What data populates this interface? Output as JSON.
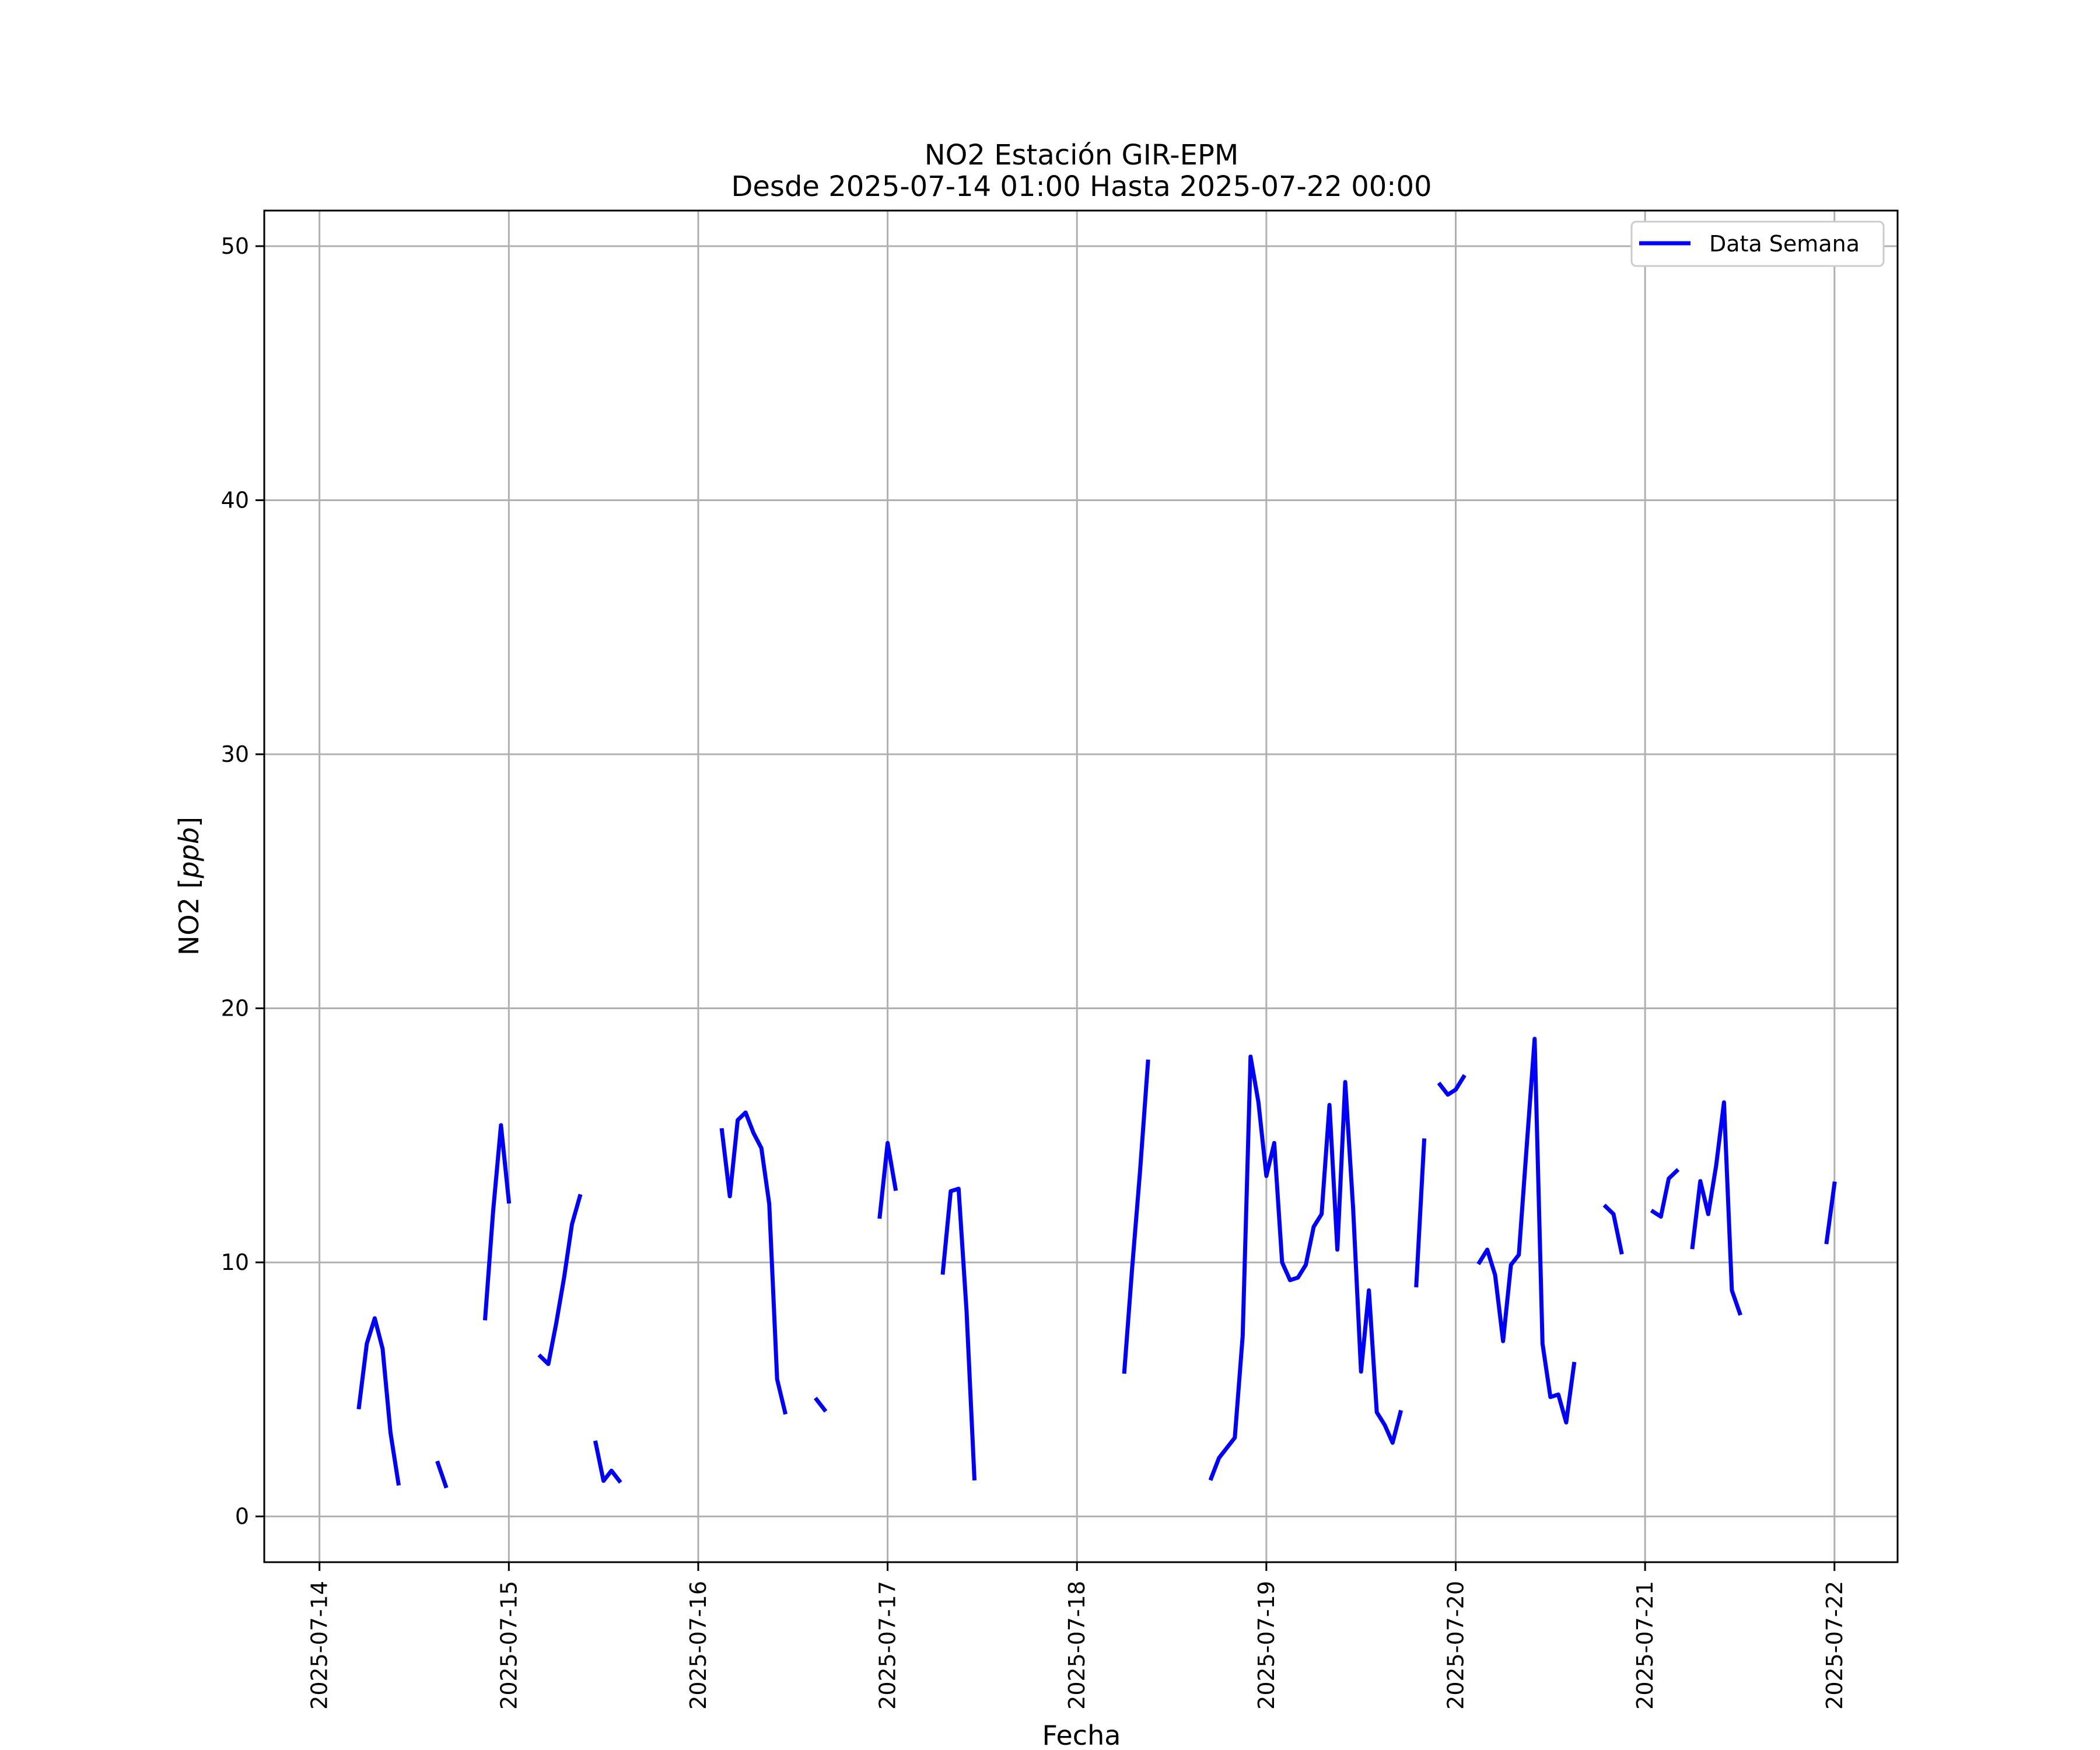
{
  "chart_data": {
    "type": "line",
    "title": "NO2 Estación GIR-EPM",
    "subtitle": "Desde 2025-07-14 01:00 Hasta 2025-07-22 00:00",
    "xlabel": "Fecha",
    "ylabel_main": "NO2 [",
    "ylabel_unit": "ppb",
    "ylabel_end": "]",
    "ylim": [
      -1.8,
      51.4
    ],
    "xlim": [
      "2025-07-13 17:00",
      "2025-07-22 08:00"
    ],
    "yticks": [
      "0",
      "10",
      "20",
      "30",
      "40",
      "50"
    ],
    "xticks": [
      "2025-07-14",
      "2025-07-15",
      "2025-07-16",
      "2025-07-17",
      "2025-07-18",
      "2025-07-19",
      "2025-07-20",
      "2025-07-21",
      "2025-07-22"
    ],
    "grid": true,
    "legend_position": "top-right",
    "series": [
      {
        "name": "Data Semana",
        "color": "#0000ff",
        "segments": [
          [
            [
              "2025-07-14 05:00",
              4.3
            ],
            [
              "2025-07-14 06:00",
              6.8
            ],
            [
              "2025-07-14 07:00",
              7.8
            ],
            [
              "2025-07-14 08:00",
              6.6
            ],
            [
              "2025-07-14 09:00",
              3.3
            ],
            [
              "2025-07-14 10:00",
              1.3
            ]
          ],
          [
            [
              "2025-07-14 15:00",
              2.1
            ],
            [
              "2025-07-14 16:00",
              1.2
            ]
          ],
          [
            [
              "2025-07-14 21:00",
              7.8
            ],
            [
              "2025-07-14 22:00",
              12.0
            ],
            [
              "2025-07-14 23:00",
              15.4
            ],
            [
              "2025-07-15 00:00",
              12.4
            ]
          ],
          [
            [
              "2025-07-15 04:00",
              6.3
            ],
            [
              "2025-07-15 05:00",
              6.0
            ],
            [
              "2025-07-15 06:00",
              7.6
            ],
            [
              "2025-07-15 07:00",
              9.4
            ],
            [
              "2025-07-15 08:00",
              11.5
            ],
            [
              "2025-07-15 09:00",
              12.6
            ]
          ],
          [
            [
              "2025-07-15 11:00",
              2.9
            ],
            [
              "2025-07-15 12:00",
              1.4
            ],
            [
              "2025-07-15 13:00",
              1.8
            ],
            [
              "2025-07-15 14:00",
              1.4
            ]
          ],
          [
            [
              "2025-07-16 03:00",
              15.2
            ],
            [
              "2025-07-16 04:00",
              12.6
            ],
            [
              "2025-07-16 05:00",
              15.6
            ],
            [
              "2025-07-16 06:00",
              15.9
            ],
            [
              "2025-07-16 07:00",
              15.1
            ],
            [
              "2025-07-16 08:00",
              14.5
            ],
            [
              "2025-07-16 09:00",
              12.3
            ],
            [
              "2025-07-16 10:00",
              5.4
            ],
            [
              "2025-07-16 11:00",
              4.1
            ]
          ],
          [
            [
              "2025-07-16 15:00",
              4.6
            ],
            [
              "2025-07-16 16:00",
              4.2
            ]
          ],
          [
            [
              "2025-07-16 23:00",
              11.8
            ],
            [
              "2025-07-17 00:00",
              14.7
            ],
            [
              "2025-07-17 01:00",
              12.9
            ]
          ],
          [
            [
              "2025-07-17 07:00",
              9.6
            ],
            [
              "2025-07-17 08:00",
              12.8
            ],
            [
              "2025-07-17 09:00",
              12.9
            ],
            [
              "2025-07-17 10:00",
              8.1
            ],
            [
              "2025-07-17 11:00",
              1.5
            ]
          ],
          [
            [
              "2025-07-18 06:00",
              5.7
            ],
            [
              "2025-07-18 07:00",
              9.8
            ],
            [
              "2025-07-18 08:00",
              13.6
            ],
            [
              "2025-07-18 09:00",
              17.9
            ]
          ],
          [
            [
              "2025-07-18 17:00",
              1.5
            ],
            [
              "2025-07-18 18:00",
              2.3
            ],
            [
              "2025-07-18 19:00",
              2.7
            ],
            [
              "2025-07-18 20:00",
              3.1
            ],
            [
              "2025-07-18 21:00",
              7.1
            ],
            [
              "2025-07-18 22:00",
              18.1
            ],
            [
              "2025-07-18 23:00",
              16.3
            ],
            [
              "2025-07-19 00:00",
              13.4
            ],
            [
              "2025-07-19 01:00",
              14.7
            ],
            [
              "2025-07-19 02:00",
              10.0
            ],
            [
              "2025-07-19 03:00",
              9.3
            ],
            [
              "2025-07-19 04:00",
              9.4
            ],
            [
              "2025-07-19 05:00",
              9.9
            ],
            [
              "2025-07-19 06:00",
              11.4
            ],
            [
              "2025-07-19 07:00",
              11.9
            ],
            [
              "2025-07-19 08:00",
              16.2
            ],
            [
              "2025-07-19 09:00",
              10.5
            ],
            [
              "2025-07-19 10:00",
              17.1
            ],
            [
              "2025-07-19 11:00",
              12.1
            ],
            [
              "2025-07-19 12:00",
              5.7
            ],
            [
              "2025-07-19 13:00",
              8.9
            ],
            [
              "2025-07-19 14:00",
              4.1
            ],
            [
              "2025-07-19 15:00",
              3.6
            ],
            [
              "2025-07-19 16:00",
              2.9
            ],
            [
              "2025-07-19 17:00",
              4.1
            ]
          ],
          [
            [
              "2025-07-19 19:00",
              9.1
            ],
            [
              "2025-07-19 20:00",
              14.8
            ]
          ],
          [
            [
              "2025-07-19 22:00",
              17.0
            ],
            [
              "2025-07-19 23:00",
              16.6
            ],
            [
              "2025-07-20 00:00",
              16.8
            ],
            [
              "2025-07-20 01:00",
              17.3
            ]
          ],
          [
            [
              "2025-07-20 03:00",
              10.0
            ],
            [
              "2025-07-20 04:00",
              10.5
            ],
            [
              "2025-07-20 05:00",
              9.5
            ],
            [
              "2025-07-20 06:00",
              6.9
            ],
            [
              "2025-07-20 07:00",
              9.9
            ],
            [
              "2025-07-20 08:00",
              10.3
            ],
            [
              "2025-07-20 09:00",
              14.6
            ],
            [
              "2025-07-20 10:00",
              18.8
            ],
            [
              "2025-07-20 11:00",
              6.8
            ],
            [
              "2025-07-20 12:00",
              4.7
            ],
            [
              "2025-07-20 13:00",
              4.8
            ],
            [
              "2025-07-20 14:00",
              3.7
            ],
            [
              "2025-07-20 15:00",
              6.0
            ]
          ],
          [
            [
              "2025-07-20 19:00",
              12.2
            ],
            [
              "2025-07-20 20:00",
              11.9
            ],
            [
              "2025-07-20 21:00",
              10.4
            ]
          ],
          [
            [
              "2025-07-21 01:00",
              12.0
            ],
            [
              "2025-07-21 02:00",
              11.8
            ],
            [
              "2025-07-21 03:00",
              13.3
            ],
            [
              "2025-07-21 04:00",
              13.6
            ]
          ],
          [
            [
              "2025-07-21 06:00",
              10.6
            ],
            [
              "2025-07-21 07:00",
              13.2
            ],
            [
              "2025-07-21 08:00",
              11.9
            ],
            [
              "2025-07-21 09:00",
              13.8
            ],
            [
              "2025-07-21 10:00",
              16.3
            ],
            [
              "2025-07-21 11:00",
              8.9
            ],
            [
              "2025-07-21 12:00",
              8.0
            ]
          ],
          [
            [
              "2025-07-21 23:00",
              10.8
            ],
            [
              "2025-07-22 00:00",
              13.1
            ]
          ]
        ]
      }
    ]
  }
}
